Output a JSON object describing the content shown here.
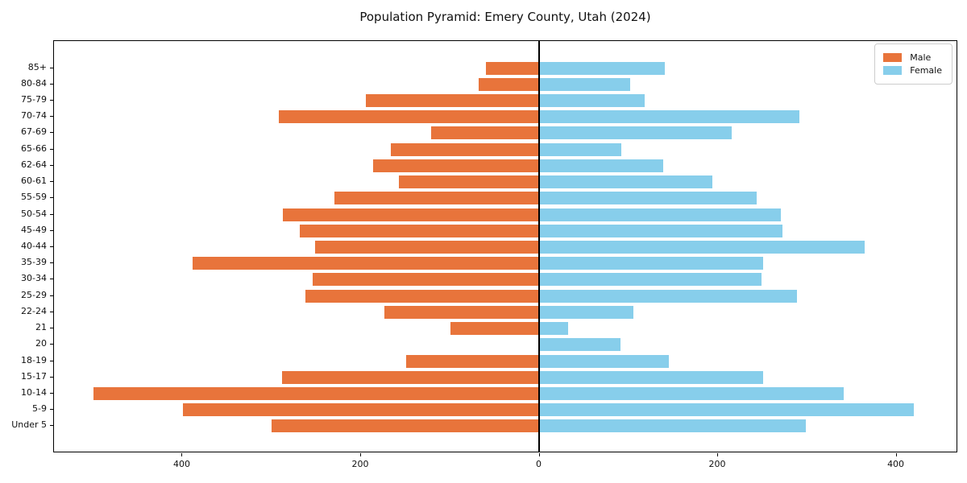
{
  "chart_data": {
    "type": "bar",
    "variant": "population_pyramid",
    "title": "Population Pyramid: Emery County, Utah (2024)",
    "categories_top_to_bottom": [
      "85+",
      "80-84",
      "75-79",
      "70-74",
      "67-69",
      "65-66",
      "62-64",
      "60-61",
      "55-59",
      "50-54",
      "45-49",
      "40-44",
      "35-39",
      "30-34",
      "25-29",
      "22-24",
      "21",
      "20",
      "18-19",
      "15-17",
      "10-14",
      "5-9",
      "Under 5"
    ],
    "series": [
      {
        "name": "Male",
        "side": "left",
        "color": "#e8743b",
        "values": [
          59,
          67,
          194,
          292,
          121,
          166,
          186,
          157,
          229,
          287,
          268,
          251,
          388,
          254,
          262,
          173,
          99,
          0,
          149,
          288,
          500,
          399,
          300
        ]
      },
      {
        "name": "Female",
        "side": "right",
        "color": "#87ceeb",
        "values": [
          142,
          103,
          119,
          293,
          217,
          93,
          140,
          195,
          245,
          272,
          274,
          366,
          252,
          250,
          290,
          106,
          33,
          92,
          146,
          252,
          342,
          421,
          300
        ]
      }
    ],
    "xlim": [
      -544,
      469
    ],
    "x_ticks": [
      {
        "value": -400,
        "label": "400"
      },
      {
        "value": -200,
        "label": "200"
      },
      {
        "value": 0,
        "label": "0"
      },
      {
        "value": 200,
        "label": "200"
      },
      {
        "value": 400,
        "label": "400"
      }
    ],
    "ylabel": "",
    "xlabel": "",
    "grid": false,
    "legend_position": "upper right",
    "axis_color": "#000000",
    "zero_line_color": "#000000",
    "background_color": "#ffffff"
  }
}
